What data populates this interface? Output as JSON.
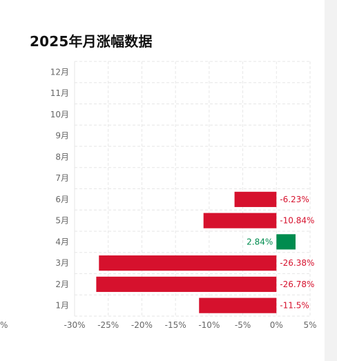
{
  "title": "2025年月涨幅数据",
  "chart_data": {
    "type": "bar",
    "orientation": "horizontal",
    "title": "2025年月涨幅数据",
    "categories": [
      "1月",
      "2月",
      "3月",
      "4月",
      "5月",
      "6月",
      "7月",
      "8月",
      "9月",
      "10月",
      "11月",
      "12月"
    ],
    "values": [
      -11.5,
      -26.78,
      -26.38,
      2.84,
      -10.84,
      -6.23,
      null,
      null,
      null,
      null,
      null,
      null
    ],
    "value_labels": [
      "-11.5%",
      "-26.78%",
      "-26.38%",
      "2.84%",
      "-10.84%",
      "-6.23%",
      "",
      "",
      "",
      "",
      "",
      ""
    ],
    "x_ticks": [
      "-30%",
      "-25%",
      "-20%",
      "-15%",
      "-10%",
      "-5%",
      "0%",
      "5%"
    ],
    "x_tick_values": [
      -30,
      -25,
      -20,
      -15,
      -10,
      -5,
      0,
      5
    ],
    "xlim": [
      -30,
      5
    ],
    "xlabel": "",
    "ylabel": "",
    "grid": true,
    "colors": {
      "negative": "#d6112d",
      "positive": "#008c4f"
    },
    "edge_fragment": "%"
  }
}
